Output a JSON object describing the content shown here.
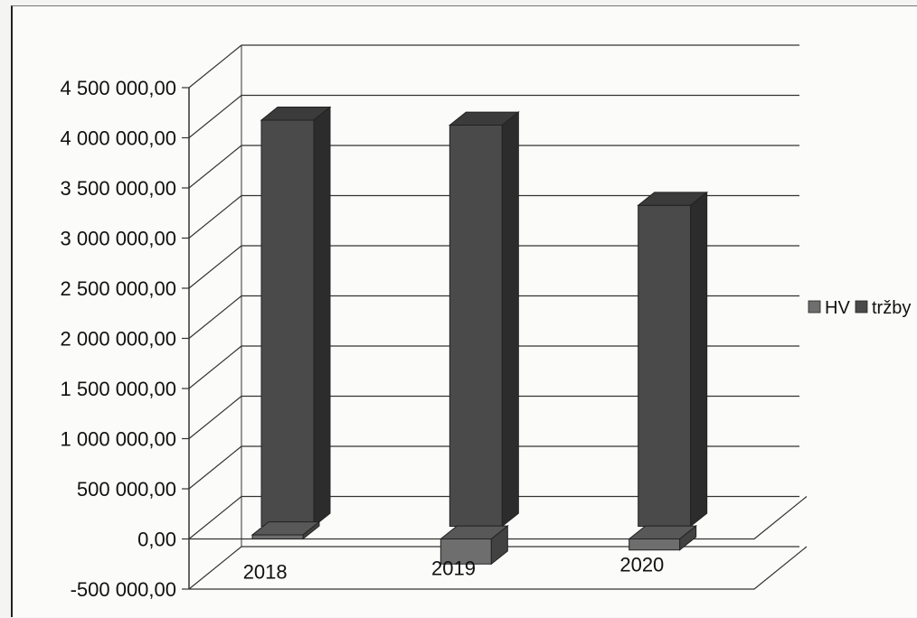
{
  "chart_data": {
    "type": "bar",
    "three_d": true,
    "categories": [
      "2018",
      "2019",
      "2020"
    ],
    "series": [
      {
        "name": "HV",
        "values": [
          40000,
          -250000,
          -110000
        ],
        "color": "#6e6e6e"
      },
      {
        "name": "tržby",
        "values": [
          4050000,
          4000000,
          3200000
        ],
        "color": "#4a4a4a"
      }
    ],
    "y_ticks": [
      "-500 000,00",
      "0,00",
      "500 000,00",
      "1 000 000,00",
      "1 500 000,00",
      "2 000 000,00",
      "2 500 000,00",
      "3 000 000,00",
      "3 500 000,00",
      "4 000 000,00",
      "4 500 000,00"
    ],
    "ylim": [
      -500000,
      4500000
    ],
    "grid": true,
    "legend_position": "right"
  }
}
